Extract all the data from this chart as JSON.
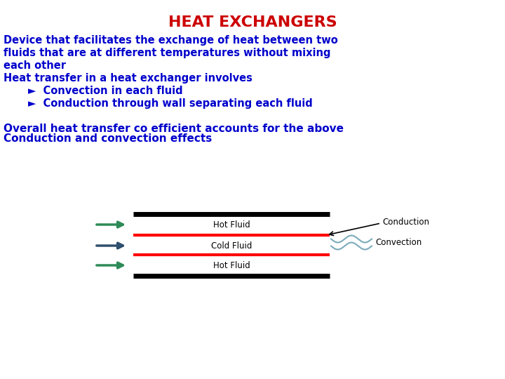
{
  "title": "HEAT EXCHANGERS",
  "title_color": "#CC0000",
  "title_fontsize": 16,
  "body_color": "#0000CC",
  "body_fontsize": 10.5,
  "bullet_fontsize": 10.5,
  "overall_fontsize": 11,
  "background_color": "#FFFFFF",
  "line1": "Device that facilitates the exchange of heat between two",
  "line2": "fluids that are at different temperatures without mixing",
  "line3": "each other",
  "line4": "Heat transfer in a heat exchanger involves",
  "bullet1": "►  Convection in each fluid",
  "bullet2": "►  Conduction through wall separating each fluid",
  "overall1": "Overall heat transfer co efficient accounts for the above",
  "overall2": "Conduction and convection effects",
  "diagram_label_hot": "Hot Fluid",
  "diagram_label_cold": "Cold Fluid",
  "diagram_label_hot2": "Hot Fluid",
  "label_conduction": "Conduction",
  "label_convection": "Convection",
  "arrow_color_green": "#2E8B57",
  "arrow_color_dark": "#2F4F6F",
  "wave_color": "#7AABBB"
}
